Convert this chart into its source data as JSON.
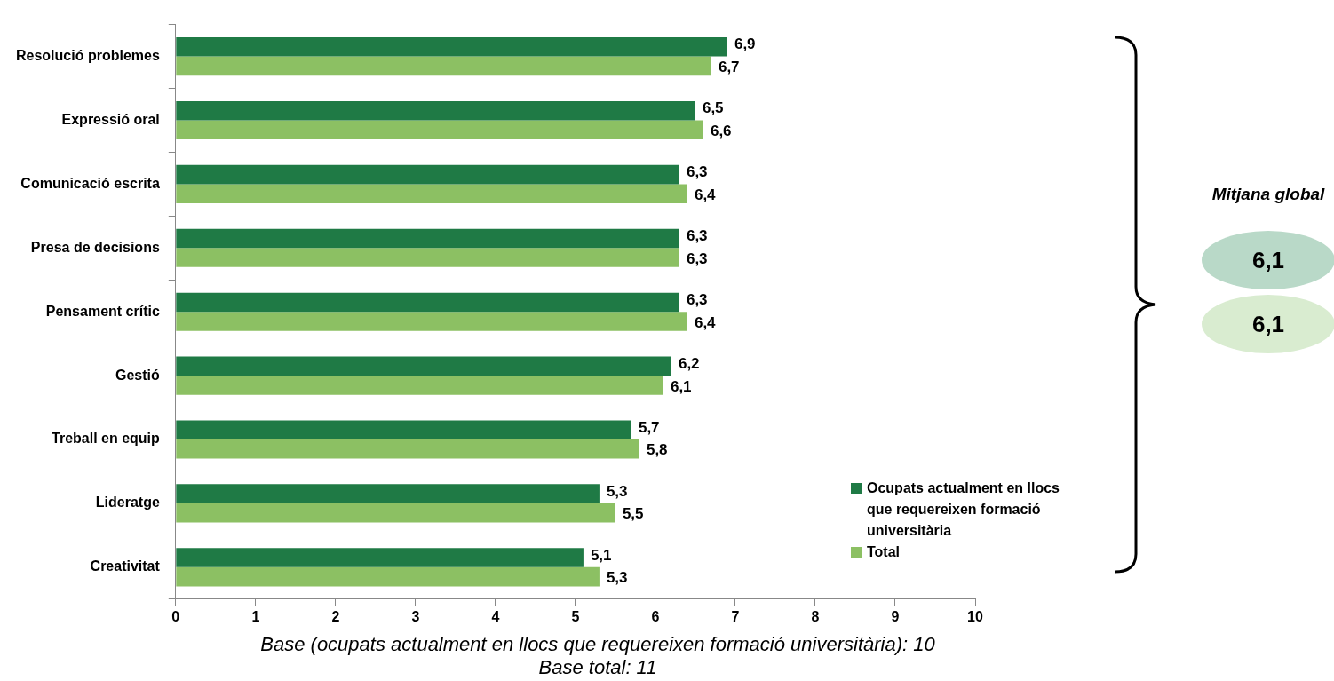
{
  "chart_data": {
    "type": "bar",
    "orientation": "horizontal",
    "categories": [
      "Resolució problemes",
      "Expressió oral",
      "Comunicació escrita",
      "Presa de decisions",
      "Pensament crític",
      "Gestió",
      "Treball en equip",
      "Lideratge",
      "Creativitat"
    ],
    "series": [
      {
        "name": "Ocupats actualment en llocs que requereixen formació universitària",
        "color": "#1f7a45",
        "values": [
          6.9,
          6.5,
          6.3,
          6.3,
          6.3,
          6.2,
          5.7,
          5.3,
          5.1
        ],
        "value_labels": [
          "6,9",
          "6,5",
          "6,3",
          "6,3",
          "6,3",
          "6,2",
          "5,7",
          "5,3",
          "5,1"
        ]
      },
      {
        "name": "Total",
        "color": "#8cc063",
        "values": [
          6.7,
          6.6,
          6.4,
          6.3,
          6.4,
          6.1,
          5.8,
          5.5,
          5.3
        ],
        "value_labels": [
          "6,7",
          "6,6",
          "6,4",
          "6,3",
          "6,4",
          "6,1",
          "5,8",
          "5,5",
          "5,3"
        ]
      }
    ],
    "xlim": [
      0,
      10
    ],
    "xticks": [
      0,
      1,
      2,
      3,
      4,
      5,
      6,
      7,
      8,
      9,
      10
    ],
    "grid": false,
    "legend": "bottom right",
    "annotations": [
      "Base (ocupats actualment en llocs que requereixen formació universitària): 10",
      "Base total: 11",
      "Mitjana global",
      "6,1",
      "6,1"
    ]
  }
}
